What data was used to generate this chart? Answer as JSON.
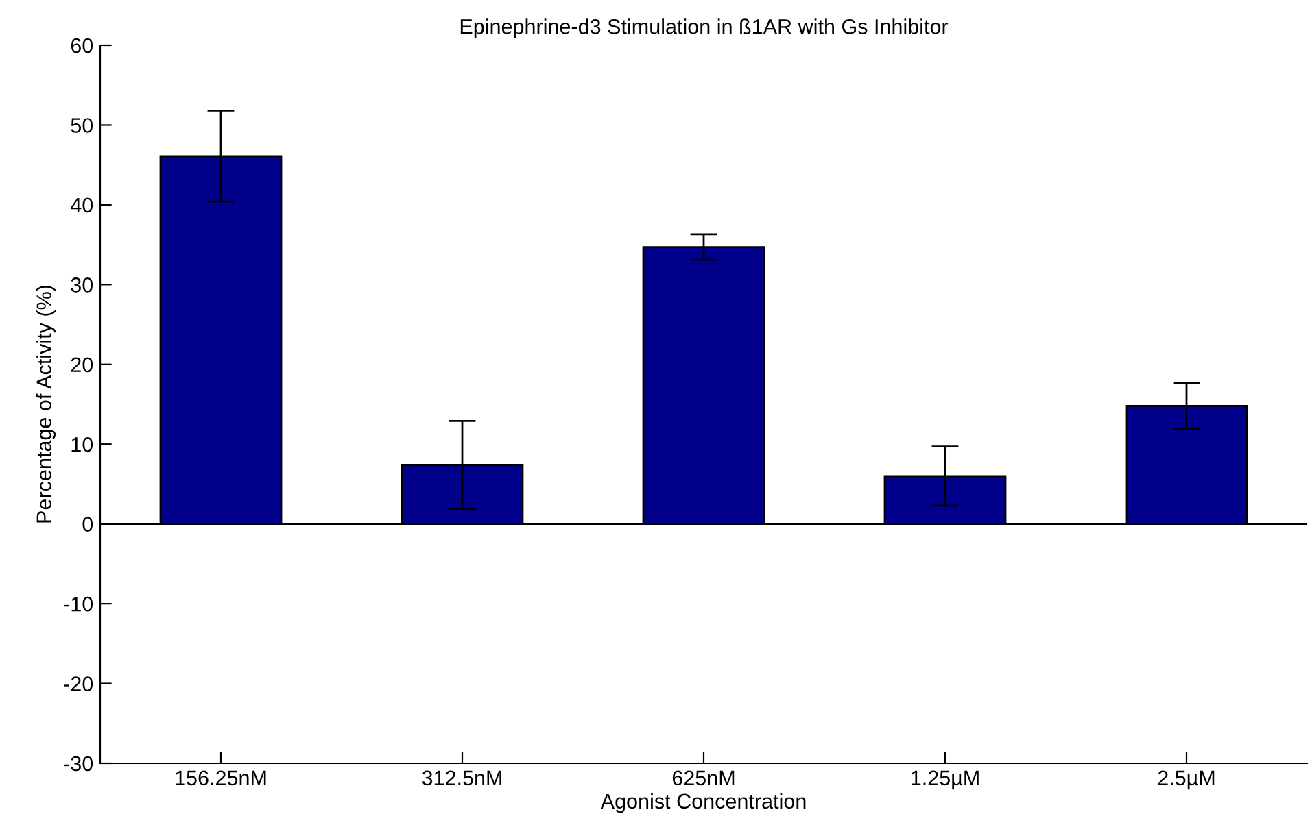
{
  "chart_data": {
    "type": "bar",
    "title": "Epinephrine-d3 Stimulation in ß1AR with Gs Inhibitor",
    "xlabel": "Agonist Concentration",
    "ylabel": "Percentage of Activity (%)",
    "categories": [
      "156.25nM",
      "312.5nM",
      "625nM",
      "1.25µM",
      "2.5µM"
    ],
    "values": [
      46.1,
      7.4,
      34.7,
      6.0,
      14.8
    ],
    "errors": [
      5.7,
      5.5,
      1.6,
      3.7,
      2.9
    ],
    "color": "#00008b",
    "ylim": [
      -30,
      60
    ],
    "yticks": [
      -30,
      -20,
      -10,
      0,
      10,
      20,
      30,
      40,
      50,
      60
    ],
    "ref_lines": [
      {
        "axis": "y",
        "value": 0,
        "color": "#000000"
      }
    ],
    "grid": false,
    "legend": false
  }
}
